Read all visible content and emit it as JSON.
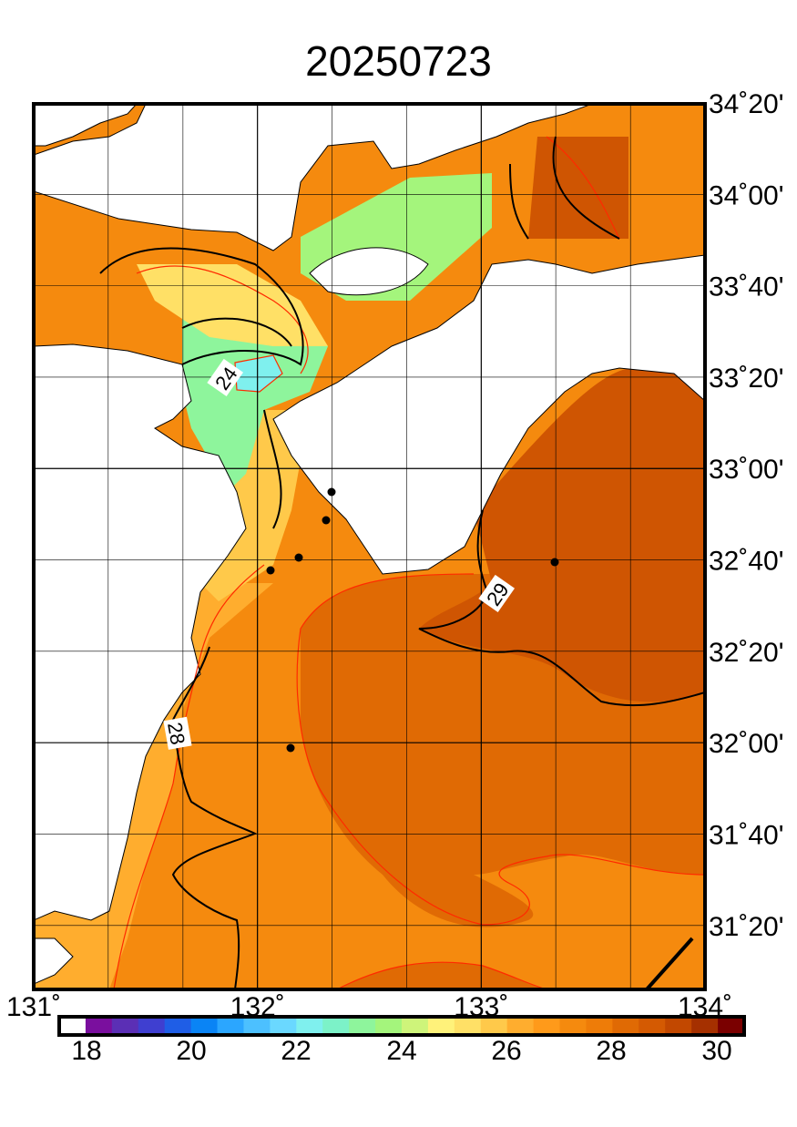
{
  "title": "20250723",
  "map": {
    "lon_range": [
      131,
      134
    ],
    "lat_range": [
      31.1,
      34.33
    ],
    "lon_labels": [
      "131˚",
      "132˚",
      "133˚",
      "134˚"
    ],
    "lat_labels": [
      "34˚20'",
      "34˚00'",
      "33˚40'",
      "33˚20'",
      "33˚00'",
      "32˚40'",
      "32˚20'",
      "32˚00'",
      "31˚40'",
      "31˚20'"
    ],
    "contour_labels": [
      "24",
      "28",
      "29"
    ],
    "land_color": "#ffffff",
    "contour_color": "#000000",
    "isoline_color": "#ff2a00"
  },
  "colorbar": {
    "tick_labels": [
      "18",
      "20",
      "22",
      "24",
      "26",
      "28",
      "30"
    ],
    "min": 18,
    "max": 30,
    "colors": [
      "#ffffff",
      "#7a0f9e",
      "#5b2fb5",
      "#3f3fd0",
      "#1f5ee6",
      "#0a84f5",
      "#2ba6ff",
      "#4cc0ff",
      "#6ad8ff",
      "#7ff0ee",
      "#7cf2c8",
      "#8ef59c",
      "#a4f57c",
      "#cef47a",
      "#fff27a",
      "#ffe066",
      "#ffc94a",
      "#ffad2e",
      "#ff9a1a",
      "#f58a0e",
      "#ee7c08",
      "#e06a04",
      "#d45a02",
      "#c24800",
      "#a53000",
      "#7a0000"
    ]
  },
  "stations": [
    "station-1",
    "station-2",
    "station-3",
    "station-4",
    "station-5",
    "station-6"
  ]
}
